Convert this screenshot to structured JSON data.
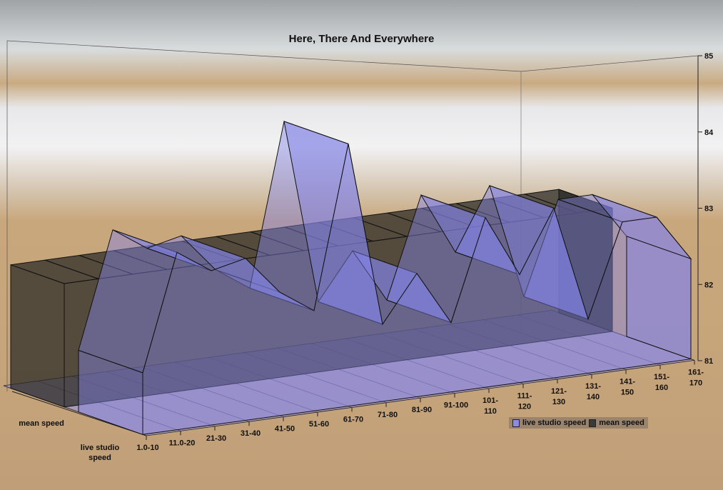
{
  "chart_data": {
    "type": "area",
    "subtype": "3d-area",
    "title": "Here, There And Everywhere",
    "categories": [
      "1.0-10",
      "11.0-20",
      "21-30",
      "31-40",
      "41-50",
      "51-60",
      "61-70",
      "71-80",
      "81-90",
      "91-100",
      "101-110",
      "111-120",
      "121-130",
      "131-140",
      "141-150",
      "151-160",
      "161-170"
    ],
    "series": [
      {
        "name": "mean speed",
        "values": [
          82.6,
          82.6,
          82.6,
          82.6,
          82.6,
          82.6,
          82.6,
          82.6,
          82.6,
          82.6,
          82.6,
          82.6,
          82.6,
          82.6,
          82.6,
          82.6,
          82.6
        ],
        "color": "#3a3a36"
      },
      {
        "name": "live studio speed",
        "values": [
          81.8,
          83.3,
          83.0,
          83.1,
          82.6,
          82.3,
          84.4,
          82.0,
          82.6,
          81.9,
          83.2,
          82.4,
          83.2,
          81.7,
          82.9,
          82.9,
          82.3
        ],
        "color": "#8c8ce6"
      }
    ],
    "series_axis_labels": [
      "mean speed",
      "live studio speed"
    ],
    "y_ticks": [
      81,
      82,
      83,
      84,
      85
    ],
    "ylim": [
      81,
      85
    ],
    "grid": false,
    "legend": {
      "position": "bottom-right",
      "items": [
        "live studio speed",
        "mean speed"
      ]
    },
    "background": "beach photo"
  }
}
